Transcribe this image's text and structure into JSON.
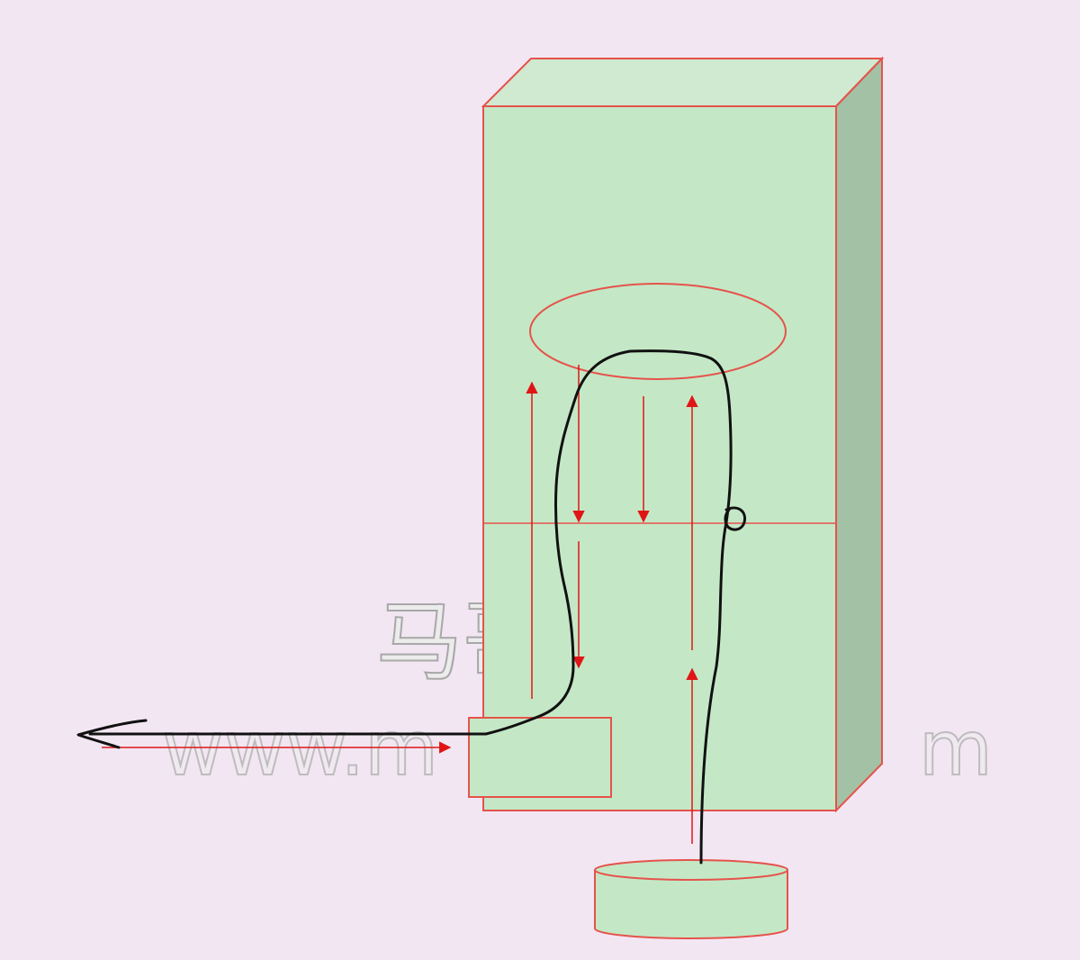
{
  "watermark": {
    "line1": "马哥",
    "line2": "www.m                    m"
  },
  "colors": {
    "background": "#f3e6f3",
    "box_front": "#c4e8c6",
    "box_top": "#d0e9d1",
    "box_side": "#a3c1a4",
    "outline": "#e5534b",
    "arrow": "#e01616",
    "curve": "#111111",
    "watermark_fill": "#ececec",
    "watermark_stroke": "#a8a8a8"
  },
  "icons": {
    "arrowhead": "triangle-arrowhead-icon",
    "open_arrowhead": "open-arrowhead-icon",
    "loop": "loop-glyph-icon"
  }
}
